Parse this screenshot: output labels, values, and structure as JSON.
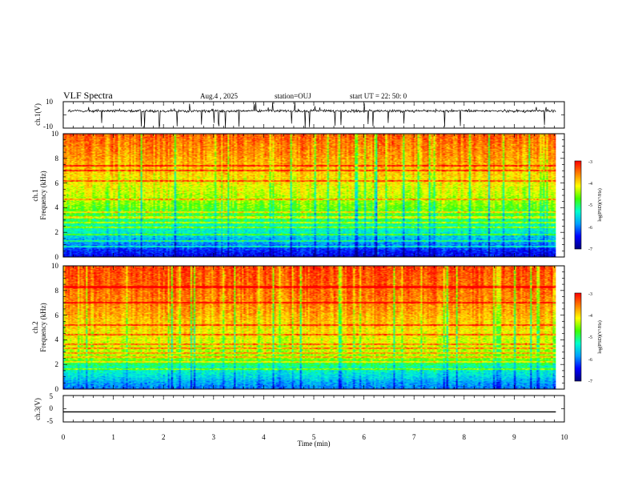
{
  "header": {
    "title": "VLF Spectra",
    "date": "Aug.4 , 2025",
    "station": "station=OUJ",
    "start": "start UT = 22: 50: 0"
  },
  "colors": {
    "colormap": [
      "#000080",
      "#0000ff",
      "#00a0ff",
      "#00ffcc",
      "#40ff00",
      "#ffff00",
      "#ff8000",
      "#ff0000",
      "#ffffff"
    ],
    "trace": "#000000",
    "frame": "#000000"
  },
  "chart_data": [
    {
      "type": "line",
      "panel": "ch1",
      "ylabel": "ch.1(V)",
      "ylim": [
        -10,
        10
      ],
      "ytick_labels": [
        "10",
        "-10"
      ],
      "x_range": [
        0,
        9.83
      ],
      "baseline": 3.0,
      "noise_amplitude": 1.0,
      "spike_range": [
        -10,
        10
      ],
      "grid": false
    },
    {
      "type": "heatmap",
      "panel": "ch2",
      "ylabel_line1": "ch.1",
      "ylabel_line2": "Frequency (kHz)",
      "ylim": [
        0,
        10
      ],
      "ytick_labels": [
        "0",
        "2",
        "4",
        "6",
        "8",
        "10"
      ],
      "x_range": [
        0,
        9.83
      ],
      "z_label": "log(PSD)(V²/Hz)",
      "z_range": [
        -7,
        -3
      ],
      "z_tick_labels": [
        "-3",
        "-4",
        "-5",
        "-6",
        "-7"
      ],
      "level_profile": [
        [
          0,
          -6.5
        ],
        [
          0.5,
          -6.3
        ],
        [
          1.0,
          -5.9
        ],
        [
          1.6,
          -5.6
        ],
        [
          2.0,
          -5.3
        ],
        [
          2.5,
          -5.2
        ],
        [
          3.2,
          -4.9
        ],
        [
          4.0,
          -4.6
        ],
        [
          5.0,
          -4.3
        ],
        [
          6.5,
          -4.0
        ],
        [
          8.0,
          -3.7
        ],
        [
          10.0,
          -3.4
        ]
      ],
      "bands_khz": [
        0.8,
        1.3,
        1.8,
        2.4,
        2.8,
        3.2,
        3.6,
        4.7,
        6.2,
        7.0,
        7.4
      ],
      "grid": false
    },
    {
      "type": "heatmap",
      "panel": "ch3",
      "ylabel_line1": "ch.2",
      "ylabel_line2": "Frequency (kHz)",
      "ylim": [
        0,
        10
      ],
      "ytick_labels": [
        "0",
        "2",
        "4",
        "6",
        "8",
        "10"
      ],
      "x_range": [
        0,
        9.83
      ],
      "z_label": "log(PSD)(V²/Hz)",
      "z_range": [
        -7,
        -3
      ],
      "z_tick_labels": [
        "-3",
        "-4",
        "-5",
        "-6",
        "-7"
      ],
      "level_profile": [
        [
          0,
          -6.0
        ],
        [
          0.5,
          -5.8
        ],
        [
          1.0,
          -5.5
        ],
        [
          1.6,
          -5.3
        ],
        [
          2.0,
          -5.0
        ],
        [
          2.5,
          -4.5
        ],
        [
          3.0,
          -4.4
        ],
        [
          3.5,
          -4.3
        ],
        [
          4.0,
          -4.2
        ],
        [
          5.0,
          -4.0
        ],
        [
          6.5,
          -3.7
        ],
        [
          8.0,
          -3.5
        ],
        [
          10.0,
          -3.3
        ]
      ],
      "bands_khz": [
        1.6,
        2.2,
        2.6,
        2.9,
        3.3,
        3.6,
        4.4,
        5.2,
        7.0,
        8.3
      ],
      "grid": false
    },
    {
      "type": "line",
      "panel": "ch3v",
      "ylabel": "ch.3(V)",
      "ylim": [
        -5,
        5
      ],
      "ytick_labels": [
        "5",
        "0",
        "-5"
      ],
      "x_range": [
        0,
        9.83
      ],
      "values_constant": -1.2,
      "grid": false
    }
  ],
  "xaxis": {
    "label": "Time (min)",
    "xlim": [
      0,
      10
    ],
    "tick_labels": [
      "0",
      "1",
      "2",
      "3",
      "4",
      "5",
      "6",
      "7",
      "8",
      "9",
      "10"
    ]
  }
}
